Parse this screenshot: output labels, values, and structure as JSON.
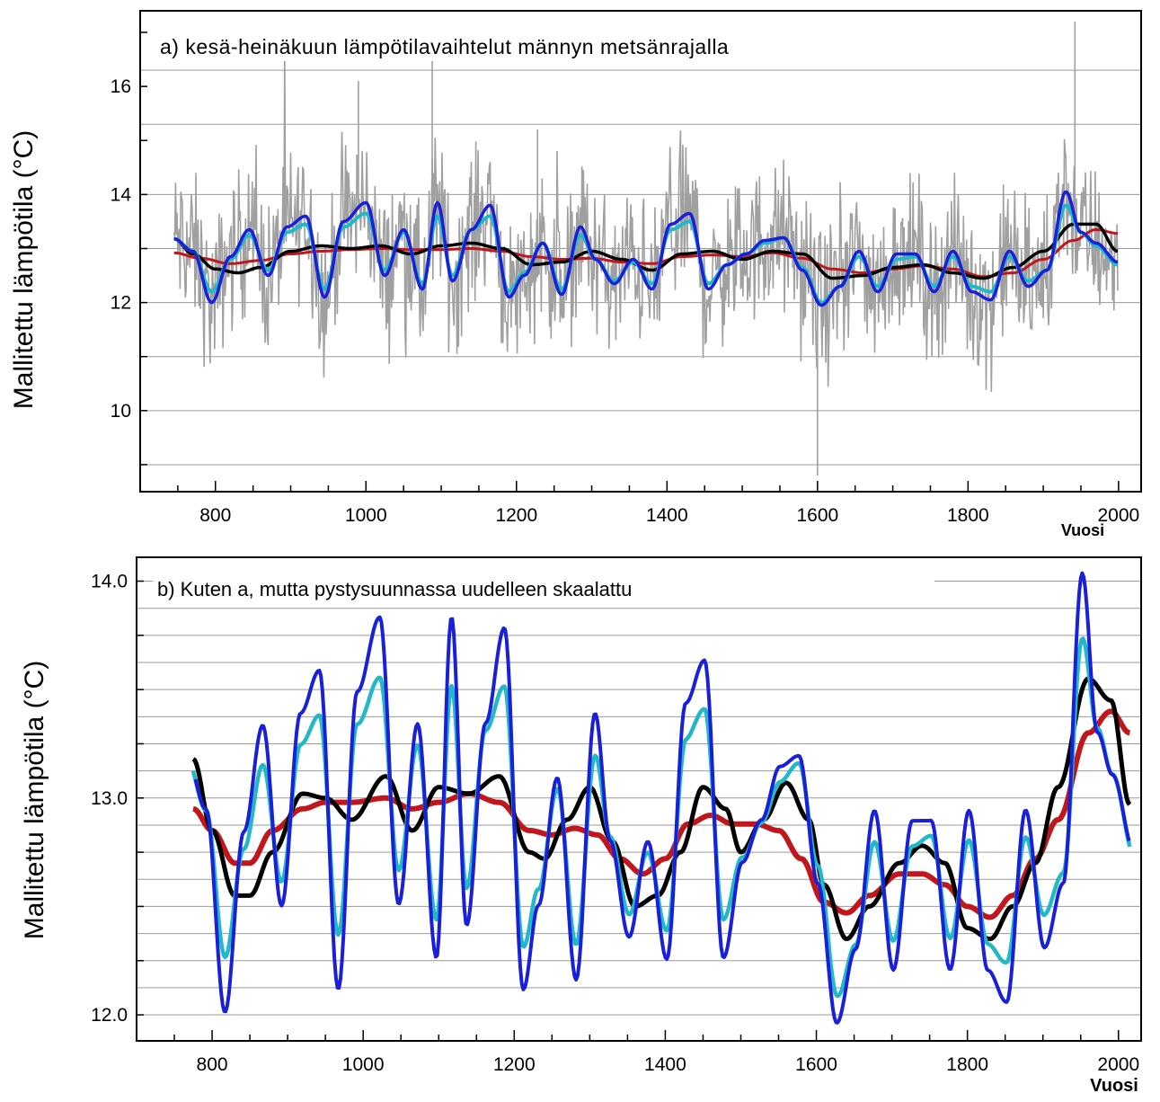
{
  "chart_data": [
    {
      "type": "line",
      "title": "a)  kesä-heinäkuun lämpötilavaihtelut männyn metsänrajalla",
      "xlabel": "Vuosi",
      "ylabel": "Mallitettu lämpötila (°C)",
      "xlim": [
        700,
        2030
      ],
      "ylim": [
        8.5,
        17.4
      ],
      "xticks": [
        "800",
        "1000",
        "1200",
        "1400",
        "1600",
        "1800",
        "2000"
      ],
      "yticks": [
        "10",
        "12",
        "14",
        "16"
      ],
      "grid": true,
      "colors": {
        "annual": "#a0a0a0",
        "black": "#000000",
        "red": "#c0161c",
        "cyan": "#22b8c8",
        "blue": "#1a1fd8"
      },
      "series": [
        {
          "key": "black",
          "x": [
            745,
            770,
            800,
            830,
            860,
            900,
            940,
            980,
            1020,
            1060,
            1100,
            1140,
            1180,
            1220,
            1260,
            1300,
            1340,
            1380,
            1420,
            1460,
            1500,
            1540,
            1580,
            1620,
            1660,
            1700,
            1740,
            1780,
            1820,
            1860,
            1900,
            1940,
            1970,
            1999
          ],
          "values": [
            13.18,
            12.9,
            12.62,
            12.55,
            12.65,
            12.95,
            13.05,
            13.0,
            13.05,
            12.9,
            13.05,
            13.1,
            13.0,
            12.7,
            12.75,
            12.95,
            12.8,
            12.6,
            12.9,
            12.95,
            12.8,
            12.95,
            12.9,
            12.45,
            12.5,
            12.65,
            12.7,
            12.55,
            12.45,
            12.65,
            12.95,
            13.45,
            13.45,
            12.95
          ]
        },
        {
          "key": "red",
          "x": [
            745,
            780,
            820,
            860,
            900,
            940,
            980,
            1020,
            1060,
            1100,
            1140,
            1180,
            1220,
            1260,
            1300,
            1340,
            1380,
            1420,
            1460,
            1500,
            1540,
            1580,
            1620,
            1660,
            1700,
            1740,
            1780,
            1820,
            1860,
            1900,
            1940,
            1970,
            1999
          ],
          "values": [
            12.92,
            12.82,
            12.72,
            12.78,
            12.9,
            12.95,
            12.98,
            13.0,
            12.98,
            12.98,
            13.0,
            12.95,
            12.85,
            12.8,
            12.82,
            12.75,
            12.72,
            12.85,
            12.88,
            12.85,
            12.92,
            12.82,
            12.62,
            12.55,
            12.62,
            12.68,
            12.62,
            12.48,
            12.55,
            12.8,
            13.15,
            13.35,
            13.28
          ]
        },
        {
          "key": "cyan",
          "x": [
            745,
            770,
            795,
            820,
            845,
            870,
            895,
            920,
            945,
            970,
            1000,
            1025,
            1050,
            1075,
            1095,
            1115,
            1140,
            1165,
            1190,
            1210,
            1235,
            1260,
            1285,
            1305,
            1330,
            1355,
            1380,
            1405,
            1430,
            1455,
            1480,
            1505,
            1530,
            1555,
            1580,
            1605,
            1630,
            1655,
            1680,
            1705,
            1730,
            1755,
            1780,
            1805,
            1830,
            1855,
            1880,
            1905,
            1930,
            1950,
            1970,
            1999
          ],
          "values": [
            13.18,
            12.95,
            12.2,
            12.8,
            13.25,
            12.6,
            13.3,
            13.45,
            12.25,
            13.4,
            13.65,
            12.6,
            13.3,
            12.35,
            13.6,
            12.5,
            13.35,
            13.6,
            12.2,
            12.55,
            13.1,
            12.25,
            13.25,
            12.8,
            12.4,
            12.75,
            12.35,
            13.35,
            13.5,
            12.35,
            12.7,
            12.9,
            13.1,
            13.2,
            12.65,
            12.0,
            12.3,
            12.85,
            12.3,
            12.8,
            12.85,
            12.3,
            12.85,
            12.3,
            12.2,
            12.85,
            12.4,
            12.6,
            13.8,
            13.3,
            13.05,
            12.7
          ]
        },
        {
          "key": "blue",
          "x": [
            745,
            770,
            795,
            820,
            845,
            870,
            895,
            920,
            945,
            970,
            1000,
            1025,
            1050,
            1075,
            1095,
            1115,
            1140,
            1165,
            1190,
            1210,
            1235,
            1260,
            1285,
            1305,
            1330,
            1355,
            1380,
            1405,
            1430,
            1455,
            1480,
            1505,
            1530,
            1555,
            1580,
            1605,
            1630,
            1655,
            1680,
            1705,
            1730,
            1755,
            1780,
            1805,
            1830,
            1855,
            1880,
            1905,
            1930,
            1950,
            1970,
            1999
          ],
          "values": [
            13.18,
            12.95,
            12.0,
            12.85,
            13.35,
            12.5,
            13.4,
            13.6,
            12.1,
            13.5,
            13.85,
            12.5,
            13.35,
            12.25,
            13.85,
            12.4,
            13.35,
            13.8,
            12.1,
            12.5,
            13.1,
            12.15,
            13.4,
            12.8,
            12.35,
            12.8,
            12.25,
            13.45,
            13.65,
            12.25,
            12.7,
            12.9,
            13.15,
            13.2,
            12.6,
            11.95,
            12.3,
            12.95,
            12.2,
            12.9,
            12.9,
            12.2,
            12.95,
            12.2,
            12.05,
            12.95,
            12.3,
            12.6,
            14.05,
            13.3,
            13.1,
            12.75
          ]
        }
      ]
    },
    {
      "type": "line",
      "title": "b) Kuten a, mutta pystysuunnassa uudelleen skaalattu",
      "xlabel": "Vuosi",
      "ylabel": "Mallitettu lämpötila (°C)",
      "xlim": [
        700,
        2030
      ],
      "ylim": [
        11.88,
        14.11
      ],
      "xticks": [
        "800",
        "1000",
        "1200",
        "1400",
        "1600",
        "1800",
        "2000"
      ],
      "yticks": [
        "12.0",
        "13.0",
        "14.0"
      ],
      "grid": true,
      "series": [
        {
          "key": "black",
          "x": [
            775,
            800,
            830,
            850,
            880,
            920,
            950,
            985,
            1030,
            1065,
            1100,
            1140,
            1180,
            1220,
            1240,
            1270,
            1300,
            1330,
            1360,
            1390,
            1420,
            1450,
            1480,
            1500,
            1530,
            1560,
            1590,
            1610,
            1640,
            1670,
            1710,
            1740,
            1770,
            1800,
            1830,
            1860,
            1890,
            1920,
            1960,
            1990,
            2015
          ],
          "values": [
            13.18,
            12.85,
            12.55,
            12.55,
            12.75,
            13.02,
            13.0,
            12.9,
            13.1,
            12.85,
            13.05,
            13.02,
            13.1,
            12.75,
            12.72,
            12.9,
            13.05,
            12.8,
            12.5,
            12.55,
            12.75,
            13.05,
            12.95,
            12.75,
            12.9,
            13.07,
            12.9,
            12.6,
            12.35,
            12.5,
            12.7,
            12.78,
            12.7,
            12.4,
            12.35,
            12.5,
            12.7,
            13.05,
            13.55,
            13.45,
            12.97
          ]
        },
        {
          "key": "red",
          "x": [
            775,
            800,
            830,
            850,
            880,
            920,
            950,
            985,
            1030,
            1065,
            1100,
            1140,
            1180,
            1220,
            1250,
            1280,
            1310,
            1340,
            1370,
            1400,
            1430,
            1460,
            1490,
            1520,
            1550,
            1580,
            1610,
            1640,
            1670,
            1710,
            1740,
            1770,
            1800,
            1830,
            1860,
            1890,
            1920,
            1960,
            1990,
            2015
          ],
          "values": [
            12.95,
            12.85,
            12.7,
            12.7,
            12.85,
            12.95,
            12.98,
            12.98,
            13.0,
            12.95,
            12.98,
            13.02,
            12.98,
            12.85,
            12.83,
            12.86,
            12.83,
            12.72,
            12.65,
            12.72,
            12.88,
            12.92,
            12.88,
            12.88,
            12.85,
            12.72,
            12.52,
            12.47,
            12.55,
            12.65,
            12.65,
            12.6,
            12.5,
            12.45,
            12.55,
            12.72,
            12.9,
            13.3,
            13.4,
            13.3
          ]
        }
      ],
      "series_note": "annual"
    }
  ]
}
